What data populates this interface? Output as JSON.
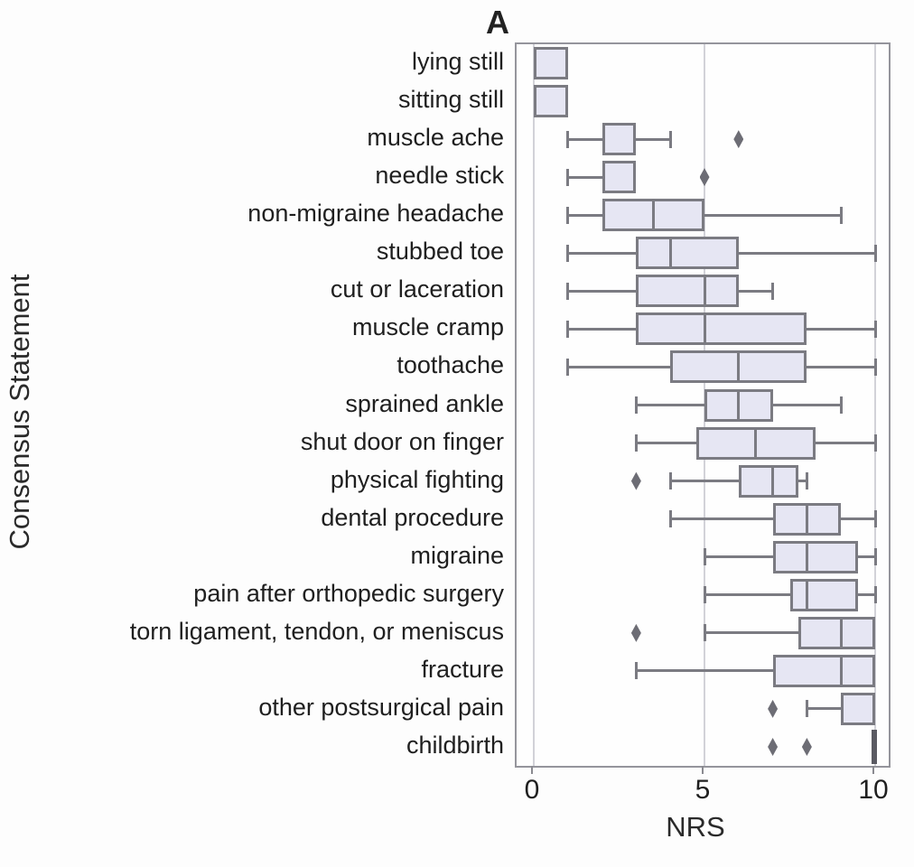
{
  "chart_data": {
    "type": "boxplot",
    "orientation": "horizontal",
    "panel_label": "A",
    "xlabel": "NRS",
    "ylabel": "Consensus Statement",
    "xlim": [
      -0.5,
      10.4
    ],
    "xticks": [
      0,
      5,
      10
    ],
    "xtick_labels": [
      "0",
      "5",
      "10"
    ],
    "grid": "vertical gridlines at each x tick",
    "legend": "none",
    "colors": {
      "box_fill": "#e6e6f3",
      "box_border": "#7b7b82",
      "whisker": "#7b7b82",
      "outlier": "#6d6d75",
      "gridline": "#d2d2d8",
      "plot_border": "#95959c",
      "text": "#1f1f1f"
    },
    "categories": [
      "lying still",
      "sitting still",
      "muscle ache",
      "needle stick",
      "non-migraine headache",
      "stubbed toe",
      "cut or laceration",
      "muscle cramp",
      "toothache",
      "sprained ankle",
      "shut door on finger",
      "physical fighting",
      "dental procedure",
      "migraine",
      "pain after orthopedic surgery",
      "torn ligament, tendon, or meniscus",
      "fracture",
      "other postsurgical pain",
      "childbirth"
    ],
    "series": [
      {
        "name": "lying still",
        "whisker_low": 0,
        "q1": 0,
        "median": 0,
        "q3": 1,
        "whisker_high": 1,
        "outliers": []
      },
      {
        "name": "sitting still",
        "whisker_low": 0,
        "q1": 0,
        "median": 0,
        "q3": 1,
        "whisker_high": 1,
        "outliers": []
      },
      {
        "name": "muscle ache",
        "whisker_low": 1,
        "q1": 2,
        "median": 3,
        "q3": 3,
        "whisker_high": 4,
        "outliers": [
          6
        ]
      },
      {
        "name": "needle stick",
        "whisker_low": 1,
        "q1": 2,
        "median": 3,
        "q3": 3,
        "whisker_high": 3,
        "outliers": [
          5
        ]
      },
      {
        "name": "non-migraine headache",
        "whisker_low": 1,
        "q1": 2,
        "median": 3.5,
        "q3": 5,
        "whisker_high": 9,
        "outliers": []
      },
      {
        "name": "stubbed toe",
        "whisker_low": 1,
        "q1": 3,
        "median": 4,
        "q3": 6,
        "whisker_high": 10,
        "outliers": []
      },
      {
        "name": "cut or laceration",
        "whisker_low": 1,
        "q1": 3,
        "median": 5,
        "q3": 6,
        "whisker_high": 7,
        "outliers": []
      },
      {
        "name": "muscle cramp",
        "whisker_low": 1,
        "q1": 3,
        "median": 5,
        "q3": 8,
        "whisker_high": 10,
        "outliers": []
      },
      {
        "name": "toothache",
        "whisker_low": 1,
        "q1": 4,
        "median": 6,
        "q3": 8,
        "whisker_high": 10,
        "outliers": []
      },
      {
        "name": "sprained ankle",
        "whisker_low": 3,
        "q1": 5,
        "median": 6,
        "q3": 7,
        "whisker_high": 9,
        "outliers": []
      },
      {
        "name": "shut door on finger",
        "whisker_low": 3,
        "q1": 4.75,
        "median": 6.5,
        "q3": 8.25,
        "whisker_high": 10,
        "outliers": []
      },
      {
        "name": "physical fighting",
        "whisker_low": 4,
        "q1": 6,
        "median": 7,
        "q3": 7.75,
        "whisker_high": 8,
        "outliers": [
          3
        ]
      },
      {
        "name": "dental procedure",
        "whisker_low": 4,
        "q1": 7,
        "median": 8,
        "q3": 9,
        "whisker_high": 10,
        "outliers": []
      },
      {
        "name": "migraine",
        "whisker_low": 5,
        "q1": 7,
        "median": 8,
        "q3": 9.5,
        "whisker_high": 10,
        "outliers": []
      },
      {
        "name": "pain after orthopedic surgery",
        "whisker_low": 5,
        "q1": 7.5,
        "median": 8,
        "q3": 9.5,
        "whisker_high": 10,
        "outliers": []
      },
      {
        "name": "torn ligament, tendon, or meniscus",
        "whisker_low": 5,
        "q1": 7.75,
        "median": 9,
        "q3": 10,
        "whisker_high": 10,
        "outliers": [
          3
        ]
      },
      {
        "name": "fracture",
        "whisker_low": 3,
        "q1": 7,
        "median": 9,
        "q3": 10,
        "whisker_high": 10,
        "outliers": []
      },
      {
        "name": "other postsurgical pain",
        "whisker_low": 8,
        "q1": 9,
        "median": 10,
        "q3": 10,
        "whisker_high": 10,
        "outliers": [
          7
        ]
      },
      {
        "name": "childbirth",
        "whisker_low": 10,
        "q1": 10,
        "median": 10,
        "q3": 10,
        "whisker_high": 10,
        "outliers": [
          7,
          8
        ]
      }
    ]
  }
}
